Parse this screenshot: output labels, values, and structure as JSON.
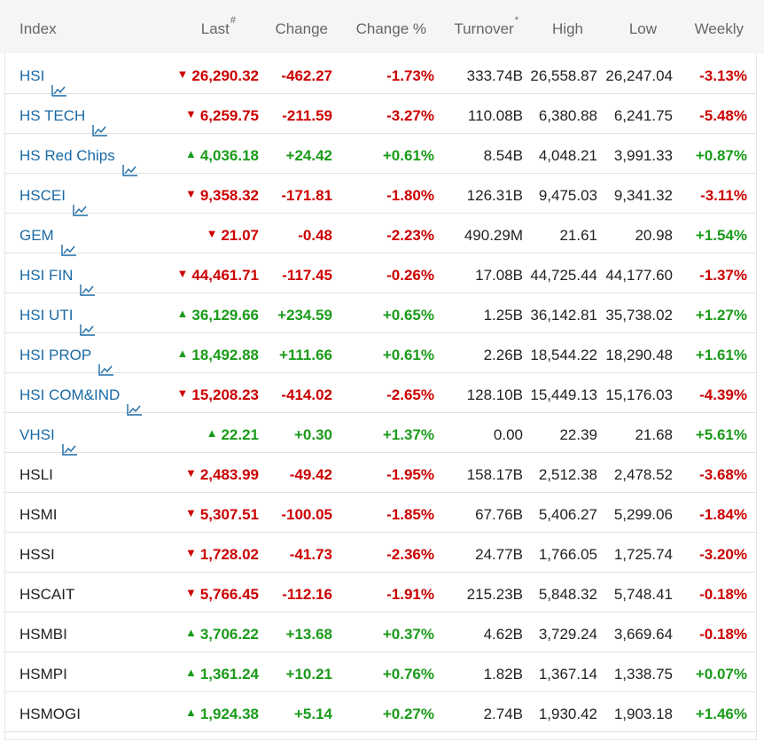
{
  "header": {
    "index": "Index",
    "last": "Last",
    "last_sup": "#",
    "change": "Change",
    "change_pct": "Change %",
    "turnover": "Turnover",
    "turnover_sup": "*",
    "high": "High",
    "low": "Low",
    "weekly": "Weekly"
  },
  "colors": {
    "up": "#1a9b1a",
    "down": "#cc0000",
    "link": "#1a6aa5"
  },
  "rows": [
    {
      "name": "HSI",
      "link": true,
      "dir": "down",
      "last": "26,290.32",
      "change": "-462.27",
      "change_pct": "-1.73%",
      "turnover": "333.74B",
      "high": "26,558.87",
      "low": "26,247.04",
      "weekly": "-3.13%",
      "weekly_dir": "down"
    },
    {
      "name": "HS TECH",
      "link": true,
      "dir": "down",
      "last": "6,259.75",
      "change": "-211.59",
      "change_pct": "-3.27%",
      "turnover": "110.08B",
      "high": "6,380.88",
      "low": "6,241.75",
      "weekly": "-5.48%",
      "weekly_dir": "down"
    },
    {
      "name": "HS Red Chips",
      "link": true,
      "dir": "up",
      "last": "4,036.18",
      "change": "+24.42",
      "change_pct": "+0.61%",
      "turnover": "8.54B",
      "high": "4,048.21",
      "low": "3,991.33",
      "weekly": "+0.87%",
      "weekly_dir": "up"
    },
    {
      "name": "HSCEI",
      "link": true,
      "dir": "down",
      "last": "9,358.32",
      "change": "-171.81",
      "change_pct": "-1.80%",
      "turnover": "126.31B",
      "high": "9,475.03",
      "low": "9,341.32",
      "weekly": "-3.11%",
      "weekly_dir": "down"
    },
    {
      "name": "GEM",
      "link": true,
      "dir": "down",
      "last": "21.07",
      "change": "-0.48",
      "change_pct": "-2.23%",
      "turnover": "490.29M",
      "high": "21.61",
      "low": "20.98",
      "weekly": "+1.54%",
      "weekly_dir": "up"
    },
    {
      "name": "HSI FIN",
      "link": true,
      "dir": "down",
      "last": "44,461.71",
      "change": "-117.45",
      "change_pct": "-0.26%",
      "turnover": "17.08B",
      "high": "44,725.44",
      "low": "44,177.60",
      "weekly": "-1.37%",
      "weekly_dir": "down"
    },
    {
      "name": "HSI UTI",
      "link": true,
      "dir": "up",
      "last": "36,129.66",
      "change": "+234.59",
      "change_pct": "+0.65%",
      "turnover": "1.25B",
      "high": "36,142.81",
      "low": "35,738.02",
      "weekly": "+1.27%",
      "weekly_dir": "up"
    },
    {
      "name": "HSI PROP",
      "link": true,
      "dir": "up",
      "last": "18,492.88",
      "change": "+111.66",
      "change_pct": "+0.61%",
      "turnover": "2.26B",
      "high": "18,544.22",
      "low": "18,290.48",
      "weekly": "+1.61%",
      "weekly_dir": "up"
    },
    {
      "name": "HSI COM&IND",
      "link": true,
      "dir": "down",
      "last": "15,208.23",
      "change": "-414.02",
      "change_pct": "-2.65%",
      "turnover": "128.10B",
      "high": "15,449.13",
      "low": "15,176.03",
      "weekly": "-4.39%",
      "weekly_dir": "down"
    },
    {
      "name": "VHSI",
      "link": true,
      "dir": "up",
      "last": "22.21",
      "change": "+0.30",
      "change_pct": "+1.37%",
      "turnover": "0.00",
      "high": "22.39",
      "low": "21.68",
      "weekly": "+5.61%",
      "weekly_dir": "up"
    },
    {
      "name": "HSLI",
      "link": false,
      "dir": "down",
      "last": "2,483.99",
      "change": "-49.42",
      "change_pct": "-1.95%",
      "turnover": "158.17B",
      "high": "2,512.38",
      "low": "2,478.52",
      "weekly": "-3.68%",
      "weekly_dir": "down"
    },
    {
      "name": "HSMI",
      "link": false,
      "dir": "down",
      "last": "5,307.51",
      "change": "-100.05",
      "change_pct": "-1.85%",
      "turnover": "67.76B",
      "high": "5,406.27",
      "low": "5,299.06",
      "weekly": "-1.84%",
      "weekly_dir": "down"
    },
    {
      "name": "HSSI",
      "link": false,
      "dir": "down",
      "last": "1,728.02",
      "change": "-41.73",
      "change_pct": "-2.36%",
      "turnover": "24.77B",
      "high": "1,766.05",
      "low": "1,725.74",
      "weekly": "-3.20%",
      "weekly_dir": "down"
    },
    {
      "name": "HSCAIT",
      "link": false,
      "dir": "down",
      "last": "5,766.45",
      "change": "-112.16",
      "change_pct": "-1.91%",
      "turnover": "215.23B",
      "high": "5,848.32",
      "low": "5,748.41",
      "weekly": "-0.18%",
      "weekly_dir": "down"
    },
    {
      "name": "HSMBI",
      "link": false,
      "dir": "up",
      "last": "3,706.22",
      "change": "+13.68",
      "change_pct": "+0.37%",
      "turnover": "4.62B",
      "high": "3,729.24",
      "low": "3,669.64",
      "weekly": "-0.18%",
      "weekly_dir": "down"
    },
    {
      "name": "HSMPI",
      "link": false,
      "dir": "up",
      "last": "1,361.24",
      "change": "+10.21",
      "change_pct": "+0.76%",
      "turnover": "1.82B",
      "high": "1,367.14",
      "low": "1,338.75",
      "weekly": "+0.07%",
      "weekly_dir": "up"
    },
    {
      "name": "HSMOGI",
      "link": false,
      "dir": "up",
      "last": "1,924.38",
      "change": "+5.14",
      "change_pct": "+0.27%",
      "turnover": "2.74B",
      "high": "1,930.42",
      "low": "1,903.18",
      "weekly": "+1.46%",
      "weekly_dir": "up"
    }
  ]
}
